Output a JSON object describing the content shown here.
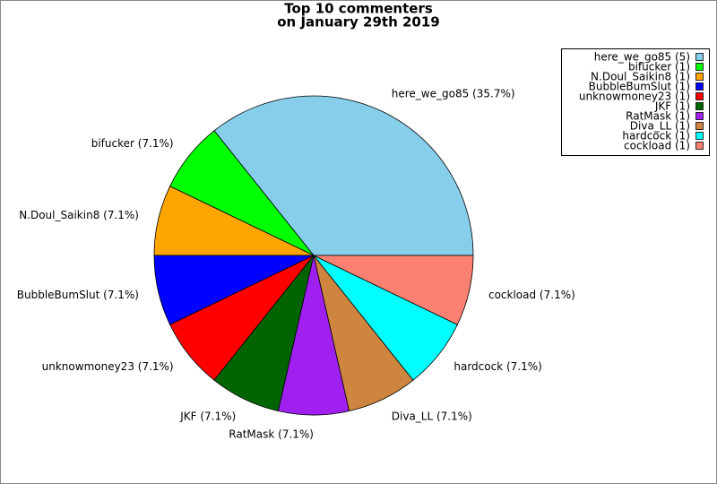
{
  "chart_data": {
    "type": "pie",
    "title": "Top 10 commenters",
    "subtitle": "on January 29th 2019",
    "categories": [
      "here_we_go85 (5)",
      "bifucker (1)",
      "N.Doul_Saikin8 (1)",
      "BubbleBumSlut (1)",
      "unknowmoney23 (1)",
      "JKF (1)",
      "RatMask (1)",
      "Diva_LL (1)",
      "hardcock (1)",
      "cockload (1)"
    ],
    "values": [
      5,
      1,
      1,
      1,
      1,
      1,
      1,
      1,
      1,
      1
    ],
    "value_labels": [
      "here_we_go85 (35.7%)",
      "bifucker (7.1%)",
      "N.Doul_Saikin8 (7.1%)",
      "BubbleBumSlut (7.1%)",
      "unknowmoney23 (7.1%)",
      "JKF (7.1%)",
      "RatMask (7.1%)",
      "Diva_LL (7.1%)",
      "hardcock (7.1%)",
      "cockload (7.1%)"
    ],
    "colors": [
      "#87ceeb",
      "#00ff00",
      "#ffa500",
      "#0000ff",
      "#ff0000",
      "#006400",
      "#a020f0",
      "#cd853f",
      "#00ffff",
      "#fa8072"
    ],
    "legend": "upper right"
  }
}
